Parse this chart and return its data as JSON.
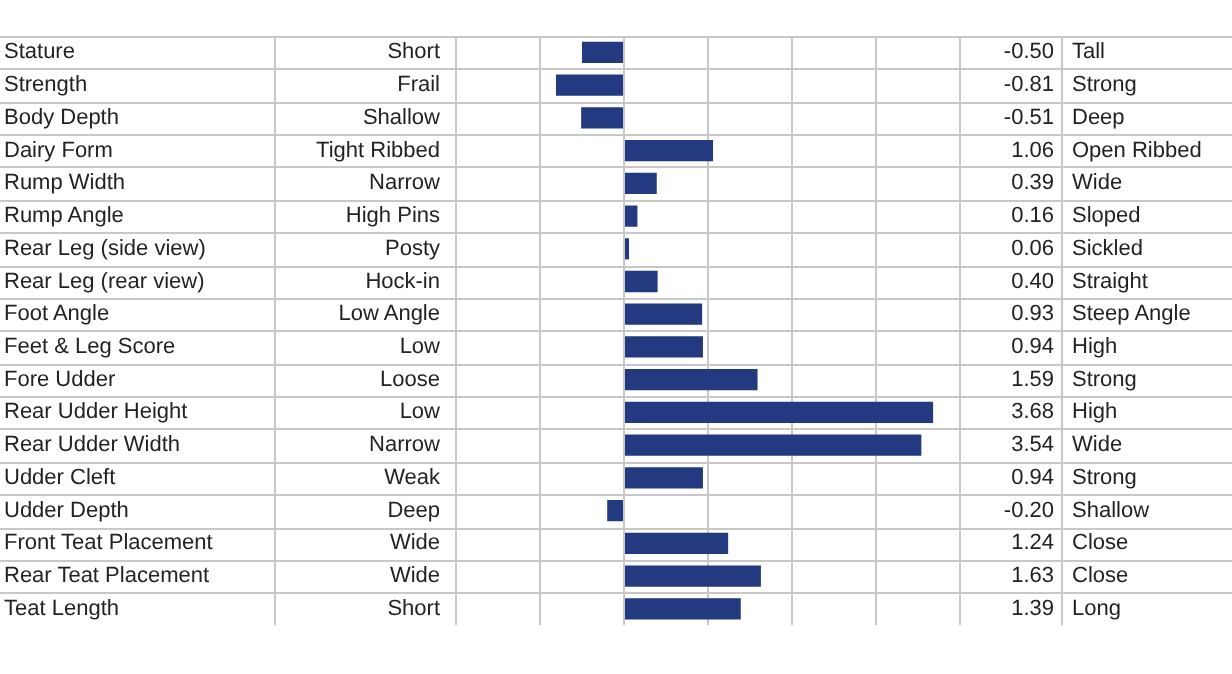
{
  "chart_data": {
    "type": "bar",
    "orientation": "horizontal",
    "categories": [
      "Stature",
      "Strength",
      "Body Depth",
      "Dairy Form",
      "Rump Width",
      "Rump Angle",
      "Rear Leg (side view)",
      "Rear Leg (rear view)",
      "Foot Angle",
      "Feet & Leg Score",
      "Fore Udder",
      "Rear Udder Height",
      "Rear Udder Width",
      "Udder Cleft",
      "Udder Depth",
      "Front Teat Placement",
      "Rear Teat Placement",
      "Teat Length"
    ],
    "values": [
      -0.5,
      -0.81,
      -0.51,
      1.06,
      0.39,
      0.16,
      0.06,
      0.4,
      0.93,
      0.94,
      1.59,
      3.68,
      3.54,
      0.94,
      -0.2,
      1.24,
      1.63,
      1.39
    ],
    "value_labels": [
      "-0.50",
      "-0.81",
      "-0.51",
      "1.06",
      "0.39",
      "0.16",
      "0.06",
      "0.40",
      "0.93",
      "0.94",
      "1.59",
      "3.68",
      "3.54",
      "0.94",
      "-0.20",
      "1.24",
      "1.63",
      "1.39"
    ],
    "color": "#233a80",
    "xlim": [
      -2,
      4
    ],
    "xticks": [
      {
        "value": -2,
        "label": null
      },
      {
        "value": -1,
        "label": null
      },
      {
        "value": 0,
        "label": null
      },
      {
        "value": 1,
        "label": null
      },
      {
        "value": 2,
        "label": null
      },
      {
        "value": 3,
        "label": null
      },
      {
        "value": 4,
        "label": null
      }
    ],
    "grid": "x",
    "annotations": [
      "Short",
      "Frail",
      "Shallow",
      "Tight Ribbed",
      "Narrow",
      "High Pins",
      "Posty",
      "Hock-in",
      "Low Angle",
      "Low",
      "Loose",
      "Low",
      "Narrow",
      "Weak",
      "Deep",
      "Wide",
      "Wide",
      "Short",
      "Tall",
      "Strong",
      "Deep",
      "Open Ribbed",
      "Wide",
      "Sloped",
      "Sickled",
      "Straight",
      "Steep Angle",
      "High",
      "Strong",
      "High",
      "Wide",
      "Strong",
      "Shallow",
      "Close",
      "Close",
      "Long"
    ]
  }
}
